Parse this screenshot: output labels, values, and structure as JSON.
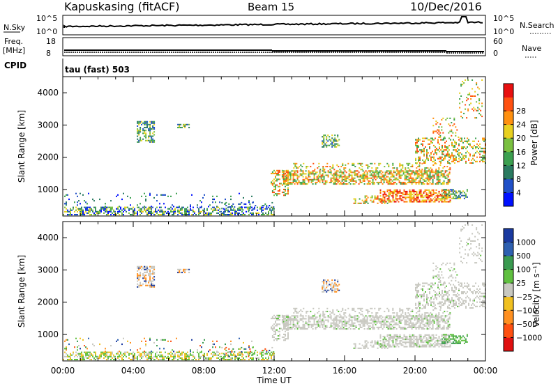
{
  "header": {
    "station": "Kapuskasing (fitACF)",
    "beam": "Beam 15",
    "date": "10/Dec/2016"
  },
  "status_panel": {
    "nsky_label": "N.Sky",
    "nsky_top": "10^5",
    "nsky_bottom": "10^0",
    "nsearch_label": "N.Search",
    "nsearch_top": "10^5",
    "nsearch_bottom": "10^0",
    "freq_label_1": "Freq.",
    "freq_label_2": "[MHz]",
    "freq_top": "18",
    "freq_bottom": "8",
    "nave_label": "Nave",
    "nave_top": "60",
    "nave_bottom": "0",
    "cpid_label": "CPID",
    "cpid_text": "tau (fast) 503"
  },
  "colors": {
    "axis": "#000000",
    "background": "#ffffff",
    "ground_scatter": "#c8c8c0"
  },
  "chart_data": [
    {
      "type": "heatmap",
      "name": "power",
      "ylabel": "Slant Range [km]",
      "xlabel": "Time UT",
      "x_ticks": [
        "00:00",
        "04:00",
        "08:00",
        "12:00",
        "16:00",
        "20:00",
        "00:00"
      ],
      "y_ticks": [
        1000,
        2000,
        3000,
        4000
      ],
      "xlim": [
        0,
        24
      ],
      "ylim": [
        180,
        4500
      ],
      "colorbar": {
        "label": "Power [dB]",
        "ticks": [
          4,
          8,
          12,
          16,
          20,
          24,
          28
        ],
        "colors": [
          "#0010ff",
          "#2050c8",
          "#2a7a60",
          "#3ca050",
          "#7ac040",
          "#e8d020",
          "#ff9010",
          "#ff5010",
          "#e81010"
        ]
      }
    },
    {
      "type": "heatmap",
      "name": "velocity",
      "ylabel": "Slant Range [km]",
      "xlabel": "Time UT",
      "x_ticks": [
        "00:00",
        "04:00",
        "08:00",
        "12:00",
        "16:00",
        "20:00",
        "00:00"
      ],
      "y_ticks": [
        1000,
        2000,
        3000,
        4000
      ],
      "xlim": [
        0,
        24
      ],
      "ylim": [
        180,
        4500
      ],
      "colorbar": {
        "label": "Velocity [m s⁻¹]",
        "ticks": [
          "1000",
          "500",
          "100",
          "25",
          "−25",
          "−100",
          "−500",
          "−1000"
        ],
        "colors": [
          "#1a3aa0",
          "#2e60b0",
          "#3a9a50",
          "#60c040",
          "#c8c8c0",
          "#f0c020",
          "#ff9020",
          "#ff5010",
          "#e01010"
        ]
      }
    }
  ]
}
